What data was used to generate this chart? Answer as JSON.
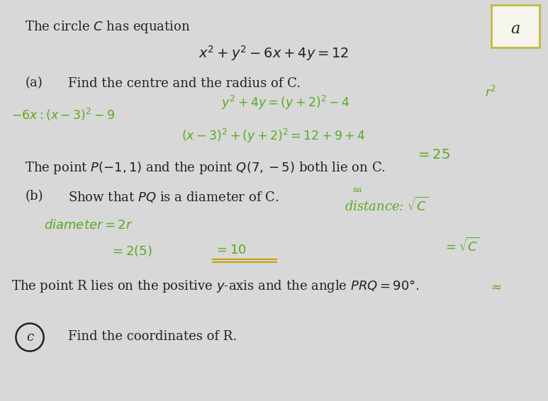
{
  "background_color": "#d8d8d8",
  "page_color": "#f0f0ee",
  "title_line": "The circle $C$ has equation",
  "equation_main": "$x^2 + y^2 - 6x + 4y = 12$",
  "part_a_label": "(a)",
  "part_a_text": "Find the centre and the radius of C.",
  "part_a_hw1_left": "$-6x : (x-3)^2-9$",
  "part_a_hw1_mid": "$y^2+4y=(y+2)^2-4$",
  "part_a_hw1_right": "$r^2$",
  "part_a_hw2": "$(x-3)^2 + (y+2)^2 = 12+9+4$",
  "part_a_hw3": "$= 25$",
  "middle_text": "The point $P(-1, 1)$ and the point $Q(7, -5)$ both lie on C.",
  "part_b_label": "(b)",
  "part_b_text": "Show that $PQ$ is a diameter of C.",
  "part_b_hw_dist": "distance: $\\sqrt{C}$",
  "part_b_hw_aa": "aa",
  "part_b_hw1": "$diameter = 2r$",
  "part_b_hw2a": "$= 2(5)$",
  "part_b_hw2b": "$= 10$",
  "part_b_hw_sqrt": "$= \\sqrt{C}$",
  "bottom_text": "The point R lies on the positive $y$-axis and the angle $PRQ = 90\\degree$.",
  "bottom_tilde": "$\\approx$",
  "part_c_label": "c",
  "part_c_text": "Find the coordinates of R.",
  "corner_box_text": "a",
  "hw_color": "#5aaa20",
  "printed_color": "#222222",
  "corner_border": "#c8b840"
}
